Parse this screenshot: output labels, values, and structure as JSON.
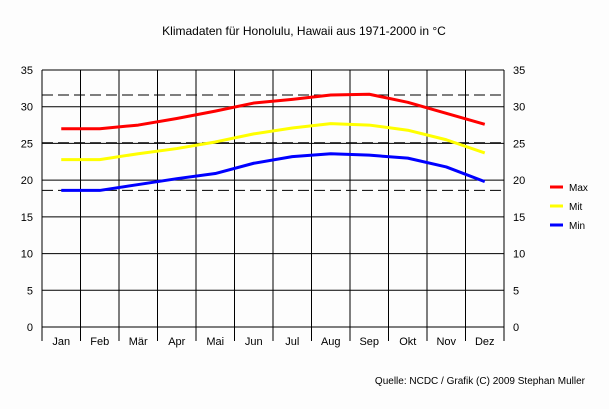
{
  "chart_data": {
    "type": "line",
    "title": "Klimadaten für Honolulu, Hawaii aus 1971-2000 in °C",
    "categories": [
      "Jan",
      "Feb",
      "Mär",
      "Apr",
      "Mai",
      "Jun",
      "Jul",
      "Aug",
      "Sep",
      "Okt",
      "Nov",
      "Dez"
    ],
    "ylim": [
      0,
      35
    ],
    "yticks": [
      0,
      5,
      10,
      15,
      20,
      25,
      30,
      35
    ],
    "grid": true,
    "legend_position": "right",
    "series": [
      {
        "name": "Max",
        "color": "#ff0000",
        "values": [
          27.0,
          27.0,
          27.5,
          28.4,
          29.4,
          30.5,
          31.0,
          31.6,
          31.7,
          30.6,
          29.1,
          27.6
        ]
      },
      {
        "name": "Mit",
        "color": "#ffff00",
        "values": [
          22.8,
          22.8,
          23.6,
          24.3,
          25.2,
          26.3,
          27.1,
          27.7,
          27.5,
          26.8,
          25.5,
          23.7
        ]
      },
      {
        "name": "Min",
        "color": "#0000ff",
        "values": [
          18.6,
          18.6,
          19.4,
          20.2,
          20.9,
          22.3,
          23.2,
          23.6,
          23.4,
          23.0,
          21.8,
          19.8
        ]
      }
    ],
    "reference_lines": [
      31.6,
      25.1,
      18.6
    ],
    "source": "Quelle: NCDC / Grafik (C) 2009 Stephan Muller"
  }
}
